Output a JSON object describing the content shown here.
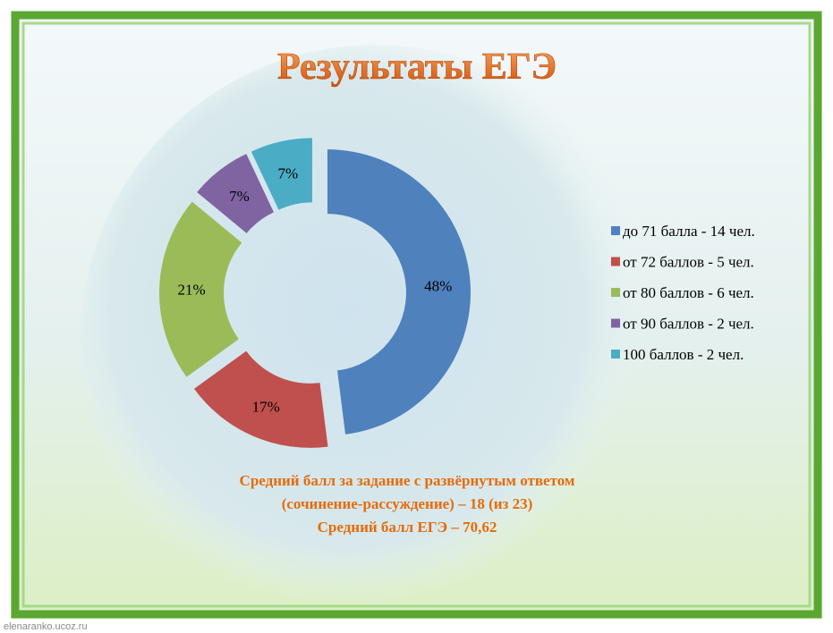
{
  "chart_data": {
    "type": "donut",
    "title": "Результаты ЕГЭ",
    "categories": [
      "до 71 балла - 14 чел.",
      "от 72 баллов - 5 чел.",
      "от 80 баллов - 6 чел.",
      "от 90 баллов - 2 чел.",
      "100 баллов - 2 чел."
    ],
    "values": [
      48,
      17,
      21,
      7,
      7
    ],
    "value_labels": [
      "48%",
      "17%",
      "21%",
      "7%",
      "7%"
    ],
    "colors": [
      "#4f81bd",
      "#c0504d",
      "#9bbb59",
      "#8064a2",
      "#4bacc6"
    ],
    "legend": "right"
  },
  "caption": [
    "Средний балл за задание с развёрнутым ответом",
    "(сочинение-рассуждение) – 18 (из 23)",
    "Средний балл ЕГЭ – 70,62"
  ],
  "watermark": "elenaranko.ucoz.ru"
}
